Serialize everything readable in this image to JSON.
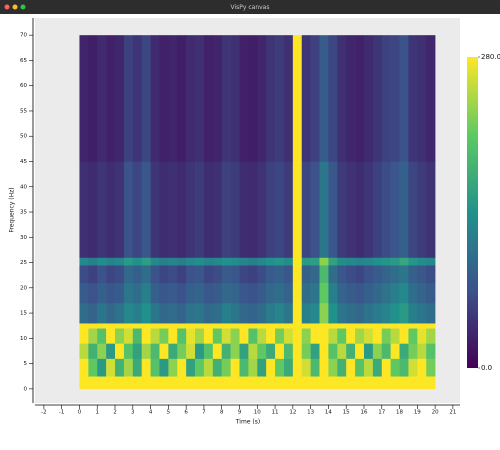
{
  "window_title": "VisPy canvas",
  "chart_data": {
    "type": "heatmap",
    "xlabel": "Time (s)",
    "ylabel": "Frequency (Hz)",
    "xlim": [
      -2.5,
      21.4
    ],
    "ylim": [
      -2.8,
      73.4
    ],
    "xticks": [
      -2,
      -1,
      0,
      1,
      2,
      3,
      4,
      5,
      6,
      7,
      8,
      9,
      10,
      11,
      12,
      13,
      14,
      15,
      16,
      17,
      18,
      19,
      20,
      21
    ],
    "yticks": [
      0,
      5,
      10,
      15,
      20,
      25,
      30,
      35,
      40,
      45,
      50,
      55,
      60,
      65,
      70
    ],
    "xbins": [
      0,
      0.5,
      1,
      1.5,
      2,
      2.5,
      3,
      3.5,
      4,
      4.5,
      5,
      5.5,
      6,
      6.5,
      7,
      7.5,
      8,
      8.5,
      9,
      9.5,
      10,
      10.5,
      11,
      11.5,
      12,
      12.5,
      13,
      13.5,
      14,
      14.5,
      15,
      15.5,
      16,
      16.5,
      17,
      17.5,
      18,
      18.5,
      19,
      19.5,
      20
    ],
    "ybins": [
      0,
      2.5,
      6,
      9,
      12,
      13,
      17,
      21,
      24.5,
      26,
      45,
      70
    ],
    "clim": [
      0,
      280
    ],
    "colorbar_ticks": [
      {
        "value": 280,
        "label": "280.0"
      },
      {
        "value": 0,
        "label": "0.0"
      }
    ],
    "colormap": [
      "#440154",
      "#3b528b",
      "#21918c",
      "#5ec962",
      "#fde725"
    ],
    "z": [
      [
        280,
        280,
        280,
        280,
        280,
        280,
        280,
        280,
        280,
        280,
        280,
        280,
        280,
        280,
        280,
        280,
        280,
        280,
        280,
        280,
        280,
        280,
        280,
        280,
        280,
        280,
        280,
        280,
        280,
        280,
        280,
        280,
        280,
        280,
        280,
        280,
        280,
        280,
        280,
        280
      ],
      [
        280,
        210,
        150,
        260,
        180,
        240,
        170,
        280,
        200,
        150,
        230,
        280,
        160,
        210,
        250,
        180,
        220,
        280,
        190,
        240,
        160,
        280,
        210,
        170,
        280,
        260,
        190,
        280,
        230,
        180,
        280,
        200,
        250,
        170,
        280,
        210,
        190,
        260,
        280,
        220
      ],
      [
        250,
        180,
        230,
        150,
        280,
        200,
        160,
        240,
        190,
        280,
        170,
        220,
        260,
        150,
        200,
        280,
        180,
        230,
        160,
        250,
        210,
        170,
        280,
        190,
        280,
        220,
        160,
        280,
        200,
        250,
        180,
        280,
        150,
        230,
        190,
        280,
        170,
        220,
        250,
        200
      ],
      [
        280,
        240,
        200,
        280,
        230,
        260,
        190,
        280,
        250,
        220,
        280,
        200,
        270,
        240,
        280,
        210,
        260,
        230,
        280,
        200,
        250,
        280,
        220,
        260,
        280,
        230,
        280,
        280,
        250,
        210,
        280,
        240,
        260,
        280,
        220,
        250,
        280,
        210,
        270,
        240
      ],
      [
        280,
        280,
        280,
        280,
        280,
        280,
        280,
        280,
        280,
        280,
        280,
        280,
        280,
        280,
        280,
        280,
        280,
        280,
        280,
        280,
        280,
        280,
        280,
        280,
        280,
        280,
        280,
        280,
        280,
        280,
        280,
        280,
        280,
        280,
        280,
        280,
        280,
        280,
        280,
        280
      ],
      [
        100,
        90,
        110,
        95,
        105,
        130,
        120,
        140,
        110,
        95,
        100,
        90,
        105,
        110,
        95,
        100,
        120,
        110,
        95,
        90,
        100,
        115,
        125,
        110,
        280,
        120,
        130,
        230,
        140,
        110,
        100,
        95,
        105,
        115,
        125,
        140,
        150,
        120,
        110,
        100
      ],
      [
        80,
        70,
        85,
        75,
        80,
        110,
        100,
        120,
        85,
        75,
        80,
        70,
        85,
        90,
        75,
        80,
        95,
        90,
        75,
        70,
        80,
        95,
        100,
        90,
        280,
        100,
        110,
        210,
        120,
        90,
        80,
        75,
        85,
        95,
        105,
        120,
        130,
        100,
        90,
        80
      ],
      [
        65,
        55,
        70,
        60,
        65,
        95,
        85,
        100,
        70,
        60,
        65,
        55,
        70,
        75,
        60,
        65,
        80,
        75,
        60,
        55,
        65,
        80,
        85,
        75,
        280,
        85,
        95,
        190,
        100,
        75,
        65,
        60,
        70,
        80,
        90,
        100,
        110,
        85,
        75,
        65
      ],
      [
        130,
        120,
        135,
        125,
        130,
        150,
        140,
        155,
        130,
        120,
        125,
        120,
        130,
        135,
        125,
        130,
        140,
        135,
        125,
        120,
        130,
        140,
        145,
        135,
        280,
        150,
        155,
        230,
        160,
        135,
        130,
        125,
        130,
        140,
        145,
        150,
        165,
        145,
        135,
        130
      ],
      [
        40,
        35,
        45,
        38,
        42,
        70,
        60,
        75,
        45,
        38,
        40,
        35,
        45,
        50,
        38,
        40,
        55,
        50,
        38,
        35,
        42,
        55,
        60,
        50,
        280,
        60,
        70,
        110,
        75,
        50,
        42,
        38,
        45,
        55,
        65,
        75,
        85,
        60,
        50,
        42
      ],
      [
        30,
        25,
        35,
        28,
        32,
        55,
        45,
        60,
        35,
        28,
        30,
        25,
        35,
        40,
        28,
        30,
        45,
        40,
        28,
        25,
        32,
        45,
        50,
        40,
        280,
        45,
        55,
        80,
        60,
        40,
        32,
        28,
        35,
        45,
        55,
        60,
        70,
        45,
        40,
        32
      ]
    ]
  }
}
